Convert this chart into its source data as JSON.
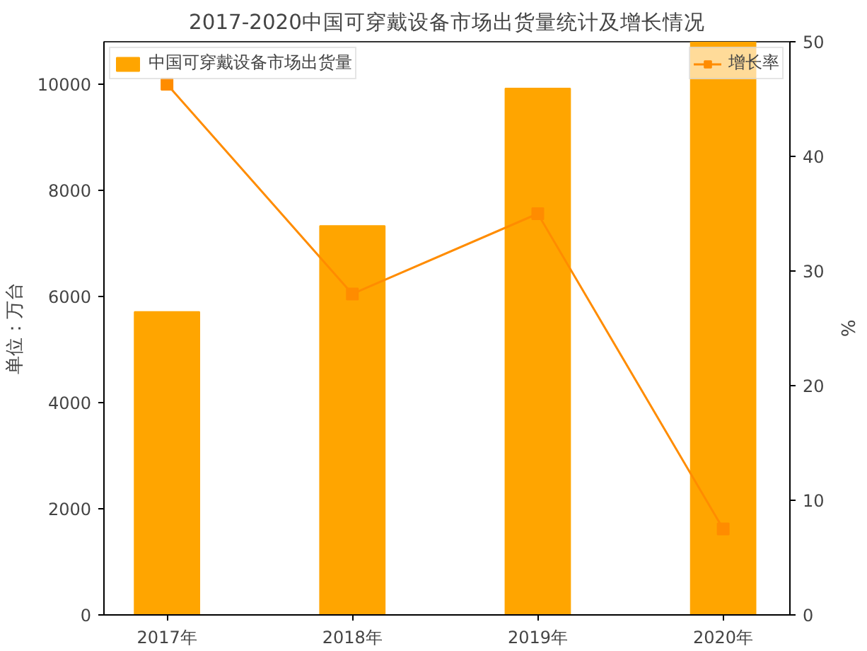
{
  "chart_data": {
    "type": "bar",
    "title": "2017-2020中国可穿戴设备市场出货量统计及增长情况",
    "ylabel": "单位：万台",
    "y2label": "%",
    "categories": [
      "2017年",
      "2018年",
      "2019年",
      "2020年"
    ],
    "series": [
      {
        "name": "中国可穿戴设备市场出货量",
        "color": "#ffa500",
        "values": [
          5710,
          7330,
          9920,
          10800
        ]
      },
      {
        "name": "增长率",
        "type": "line",
        "axis": "y2",
        "color": "#ff8c00",
        "marker": "square",
        "values": [
          46.3,
          28.0,
          35.0,
          7.5
        ]
      }
    ],
    "ylim": [
      0,
      10800
    ],
    "yticks": [
      0,
      2000,
      4000,
      6000,
      8000,
      10000
    ],
    "y2lim": [
      0,
      50
    ],
    "y2ticks": [
      0,
      10,
      20,
      30,
      40,
      50
    ],
    "legend": "top",
    "grid": false
  }
}
